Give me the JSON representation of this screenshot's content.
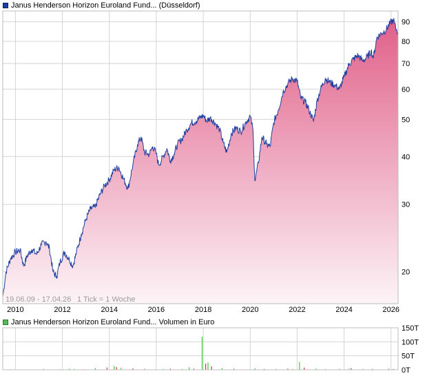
{
  "header": {
    "series_label": "Janus Henderson Horizon Euroland Fund... (Düsseldorf)",
    "volume_label": "Janus Henderson Horizon Euroland Fund... Volumen in Euro"
  },
  "footer": {
    "date_range": "19.06.09 - 17.04.26",
    "tick_info": "1 Tick = 1 Woche"
  },
  "colors": {
    "price_line": "#1f3fa0",
    "area_top": "#e0608a",
    "area_bottom": "#fdf4f7",
    "volume_up": "#33cc33",
    "volume_down": "#cc3333",
    "grid": "#d4d4d4",
    "legend_price": "#1f3fa0",
    "legend_volume": "#55bb55"
  },
  "chart_data": [
    {
      "type": "area",
      "scale": "log",
      "x_ticks": [
        "2010",
        "2012",
        "2014",
        "2016",
        "2018",
        "2020",
        "2022",
        "2024",
        "2026"
      ],
      "y_ticks": [
        "20",
        "30",
        "40",
        "50",
        "60",
        "70",
        "80",
        "90"
      ],
      "ylim": [
        16.5,
        96
      ],
      "xlim": [
        2009.46,
        2026.3
      ],
      "series": [
        {
          "points": [
            [
              2009.46,
              17.2
            ],
            [
              2009.6,
              20.0
            ],
            [
              2009.8,
              21.7
            ],
            [
              2010.0,
              22.5
            ],
            [
              2010.2,
              22.8
            ],
            [
              2010.35,
              20.7
            ],
            [
              2010.5,
              22.0
            ],
            [
              2010.7,
              22.9
            ],
            [
              2010.9,
              22.2
            ],
            [
              2011.1,
              23.5
            ],
            [
              2011.3,
              24.0
            ],
            [
              2011.45,
              23.0
            ],
            [
              2011.6,
              20.0
            ],
            [
              2011.75,
              19.4
            ],
            [
              2011.9,
              21.2
            ],
            [
              2012.1,
              22.5
            ],
            [
              2012.3,
              21.5
            ],
            [
              2012.45,
              20.7
            ],
            [
              2012.6,
              22.5
            ],
            [
              2012.8,
              25.0
            ],
            [
              2013.0,
              27.4
            ],
            [
              2013.2,
              29.2
            ],
            [
              2013.4,
              29.5
            ],
            [
              2013.6,
              31.8
            ],
            [
              2013.8,
              33.6
            ],
            [
              2014.0,
              34.8
            ],
            [
              2014.2,
              36.9
            ],
            [
              2014.4,
              37.5
            ],
            [
              2014.6,
              35.0
            ],
            [
              2014.8,
              33.0
            ],
            [
              2015.0,
              38.0
            ],
            [
              2015.2,
              43.0
            ],
            [
              2015.35,
              45.0
            ],
            [
              2015.5,
              41.0
            ],
            [
              2015.7,
              40.5
            ],
            [
              2015.85,
              42.5
            ],
            [
              2016.0,
              40.7
            ],
            [
              2016.1,
              38.0
            ],
            [
              2016.3,
              40.0
            ],
            [
              2016.45,
              42.0
            ],
            [
              2016.6,
              39.0
            ],
            [
              2016.75,
              40.5
            ],
            [
              2016.9,
              43.0
            ],
            [
              2017.1,
              44.5
            ],
            [
              2017.3,
              47.0
            ],
            [
              2017.5,
              49.0
            ],
            [
              2017.7,
              49.5
            ],
            [
              2017.85,
              50.5
            ],
            [
              2018.0,
              51.2
            ],
            [
              2018.15,
              49.5
            ],
            [
              2018.3,
              50.5
            ],
            [
              2018.5,
              49.0
            ],
            [
              2018.7,
              47.0
            ],
            [
              2018.85,
              43.5
            ],
            [
              2019.0,
              41.0
            ],
            [
              2019.2,
              46.0
            ],
            [
              2019.4,
              47.5
            ],
            [
              2019.6,
              46.5
            ],
            [
              2019.8,
              49.0
            ],
            [
              2020.0,
              51.0
            ],
            [
              2020.12,
              47.0
            ],
            [
              2020.2,
              34.5
            ],
            [
              2020.35,
              38.5
            ],
            [
              2020.5,
              45.0
            ],
            [
              2020.7,
              43.0
            ],
            [
              2020.85,
              42.5
            ],
            [
              2021.0,
              49.0
            ],
            [
              2021.2,
              53.0
            ],
            [
              2021.4,
              59.0
            ],
            [
              2021.6,
              62.0
            ],
            [
              2021.8,
              64.0
            ],
            [
              2022.0,
              63.0
            ],
            [
              2022.15,
              57.0
            ],
            [
              2022.35,
              55.5
            ],
            [
              2022.5,
              53.0
            ],
            [
              2022.7,
              49.5
            ],
            [
              2022.85,
              56.0
            ],
            [
              2023.0,
              60.0
            ],
            [
              2023.2,
              64.0
            ],
            [
              2023.4,
              62.5
            ],
            [
              2023.6,
              61.5
            ],
            [
              2023.8,
              60.0
            ],
            [
              2024.0,
              64.5
            ],
            [
              2024.2,
              69.5
            ],
            [
              2024.4,
              72.0
            ],
            [
              2024.6,
              73.5
            ],
            [
              2024.8,
              71.0
            ],
            [
              2025.0,
              73.0
            ],
            [
              2025.15,
              75.5
            ],
            [
              2025.25,
              72.5
            ],
            [
              2025.4,
              82.0
            ],
            [
              2025.6,
              84.0
            ],
            [
              2025.8,
              86.0
            ],
            [
              2025.95,
              89.0
            ],
            [
              2026.1,
              91.0
            ],
            [
              2026.2,
              86.5
            ],
            [
              2026.3,
              84.5
            ]
          ]
        }
      ]
    },
    {
      "type": "bar",
      "y_ticks": [
        "0T",
        "50T",
        "100T",
        "150T"
      ],
      "ylim": [
        0,
        150
      ],
      "bars": [
        [
          2009.8,
          2,
          "up"
        ],
        [
          2010.4,
          1,
          "down"
        ],
        [
          2011.2,
          3,
          "up"
        ],
        [
          2011.9,
          2,
          "down"
        ],
        [
          2012.3,
          4,
          "up"
        ],
        [
          2012.5,
          3,
          "up"
        ],
        [
          2012.9,
          2,
          "down"
        ],
        [
          2013.4,
          6,
          "up"
        ],
        [
          2013.9,
          8,
          "down"
        ],
        [
          2014.2,
          14,
          "up"
        ],
        [
          2014.3,
          10,
          "down"
        ],
        [
          2014.5,
          7,
          "up"
        ],
        [
          2015.0,
          5,
          "down"
        ],
        [
          2015.5,
          4,
          "up"
        ],
        [
          2016.3,
          3,
          "up"
        ],
        [
          2016.6,
          4,
          "down"
        ],
        [
          2017.1,
          3,
          "up"
        ],
        [
          2017.4,
          9,
          "up"
        ],
        [
          2017.6,
          4,
          "down"
        ],
        [
          2017.95,
          118,
          "up"
        ],
        [
          2018.1,
          22,
          "down"
        ],
        [
          2018.2,
          26,
          "up"
        ],
        [
          2018.35,
          12,
          "down"
        ],
        [
          2018.8,
          6,
          "up"
        ],
        [
          2019.3,
          4,
          "down"
        ],
        [
          2020.2,
          5,
          "up"
        ],
        [
          2020.6,
          3,
          "down"
        ],
        [
          2021.1,
          3,
          "up"
        ],
        [
          2021.6,
          4,
          "down"
        ],
        [
          2021.8,
          3,
          "up"
        ],
        [
          2022.1,
          28,
          "up"
        ],
        [
          2022.3,
          8,
          "down"
        ],
        [
          2022.8,
          4,
          "up"
        ],
        [
          2023.2,
          3,
          "up"
        ],
        [
          2023.8,
          3,
          "down"
        ],
        [
          2024.2,
          4,
          "up"
        ],
        [
          2024.3,
          6,
          "down"
        ],
        [
          2024.8,
          3,
          "up"
        ],
        [
          2025.2,
          3,
          "down"
        ],
        [
          2025.9,
          4,
          "up"
        ],
        [
          2026.1,
          3,
          "down"
        ]
      ]
    }
  ]
}
